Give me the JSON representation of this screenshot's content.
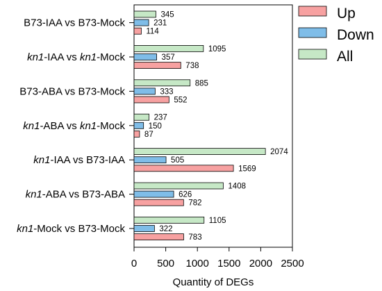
{
  "chart_data": {
    "type": "bar",
    "orientation": "horizontal",
    "categories": [
      "B73-IAA vs B73-Mock",
      "kn1-IAA vs kn1-Mock",
      "B73-ABA vs B73-Mock",
      "kn1-ABA vs kn1-Mock",
      "kn1-IAA vs B73-IAA",
      "kn1-ABA vs B73-ABA",
      "kn1-Mock vs B73-Mock"
    ],
    "category_parts": [
      {
        "lead": "",
        "ital1": "",
        "mid": "B73-IAA vs B73-Mock",
        "ital2": "",
        "tail": ""
      },
      {
        "lead": "",
        "ital1": "kn1",
        "mid": "-IAA vs ",
        "ital2": "kn1",
        "tail": "-Mock"
      },
      {
        "lead": "",
        "ital1": "",
        "mid": "B73-ABA vs B73-Mock",
        "ital2": "",
        "tail": ""
      },
      {
        "lead": "",
        "ital1": "kn1",
        "mid": "-ABA vs ",
        "ital2": "kn1",
        "tail": "-Mock"
      },
      {
        "lead": "",
        "ital1": "kn1",
        "mid": "-IAA vs B73-IAA",
        "ital2": "",
        "tail": ""
      },
      {
        "lead": "",
        "ital1": "kn1",
        "mid": "-ABA vs B73-ABA",
        "ital2": "",
        "tail": ""
      },
      {
        "lead": "",
        "ital1": "kn1",
        "mid": "-Mock vs B73-Mock",
        "ital2": "",
        "tail": ""
      }
    ],
    "series": [
      {
        "name": "All",
        "color": "#c6e8c6",
        "values": [
          345,
          1095,
          885,
          237,
          2074,
          1408,
          1105
        ]
      },
      {
        "name": "Down",
        "color": "#7fbde8",
        "values": [
          231,
          357,
          333,
          150,
          505,
          626,
          322
        ]
      },
      {
        "name": "Up",
        "color": "#f7a1a1",
        "values": [
          114,
          738,
          552,
          87,
          1569,
          782,
          783
        ]
      }
    ],
    "legend": [
      {
        "name": "Up",
        "color": "#f7a1a1"
      },
      {
        "name": "Down",
        "color": "#7fbde8"
      },
      {
        "name": "All",
        "color": "#c6e8c6"
      }
    ],
    "legend_position": "top-right",
    "xlabel": "Quantity of DEGs",
    "ylabel": "",
    "xlim": [
      0,
      2500
    ],
    "xticks": [
      0,
      500,
      1000,
      1500,
      2000,
      2500
    ],
    "grid": false
  }
}
